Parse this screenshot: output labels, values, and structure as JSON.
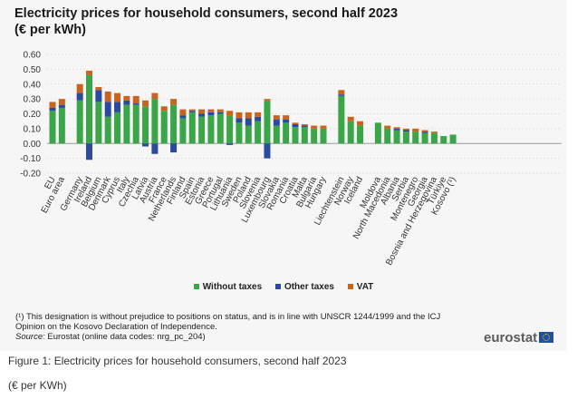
{
  "figure": {
    "title_line1": "Electricity prices for household consumers, second half 2023",
    "title_line2": "(€ per kWh)",
    "caption": "Figure 1: Electricity prices for household consumers, second half 2023",
    "subcaption": "(€ per KWh)",
    "footnote_line1": "(¹) This designation is without prejudice to positions on status, and is in line with UNSCR 1244/1999 and the ICJ",
    "footnote_line2": "Opinion on the Kosovo Declaration of Independence.",
    "source_label": "Source:",
    "source_text": " Eurostat (online data codes: nrg_pc_204)",
    "logo_text": "eurostat"
  },
  "chart_data": {
    "type": "bar",
    "stacked": true,
    "title": "Electricity prices for household consumers, second half 2023",
    "ylabel": "(€ per kWh)",
    "ylim": [
      -0.2,
      0.6
    ],
    "yticks": [
      "0.60",
      "0.50",
      "0.40",
      "0.30",
      "0.20",
      "0.10",
      "0.00",
      "-0.10",
      "-0.20"
    ],
    "grid": true,
    "legend_position": "bottom",
    "colors": {
      "without_taxes": "#3aa648",
      "other_taxes": "#2a4a9f",
      "vat": "#c8641e"
    },
    "categories": [
      "EU",
      "Euro area",
      "Germany",
      "Ireland",
      "Belgium",
      "Denmark",
      "Cyprus",
      "Italy",
      "Czechia",
      "Latvia",
      "Austria",
      "France",
      "Netherlands",
      "Finland",
      "Spain",
      "Estonia",
      "Greece",
      "Portugal",
      "Lithuania",
      "Sweden",
      "Poland",
      "Slovenia",
      "Luxembourg",
      "Slovakia",
      "Romania",
      "Croatia",
      "Malta",
      "Bulgaria",
      "Hungary",
      "Liechtenstein",
      "Norway",
      "Iceland",
      "Moldova",
      "North Macedonia",
      "Albania",
      "Serbia",
      "Montenegro",
      "Georgia",
      "Bosnia and Herzegovina",
      "Türkiye",
      "Kosovo (¹)"
    ],
    "groups": [
      [
        0,
        1
      ],
      [
        2,
        28
      ],
      [
        29,
        31
      ],
      [
        32,
        40
      ]
    ],
    "series": [
      {
        "name": "Without taxes",
        "values": [
          0.22,
          0.24,
          0.29,
          0.46,
          0.28,
          0.18,
          0.21,
          0.26,
          0.26,
          0.25,
          0.3,
          0.22,
          0.26,
          0.17,
          0.21,
          0.18,
          0.19,
          0.2,
          0.19,
          0.14,
          0.12,
          0.15,
          0.29,
          0.12,
          0.14,
          0.11,
          0.11,
          0.1,
          0.1,
          0.32,
          0.15,
          0.12,
          0.14,
          0.1,
          0.09,
          0.08,
          0.08,
          0.07,
          0.07,
          0.05,
          0.06
        ]
      },
      {
        "name": "Other taxes",
        "values": [
          0.02,
          0.02,
          0.05,
          -0.11,
          0.08,
          0.1,
          0.07,
          0.03,
          0.01,
          -0.02,
          -0.07,
          0.0,
          -0.06,
          0.02,
          0.01,
          0.02,
          0.02,
          0.01,
          -0.01,
          0.03,
          0.05,
          0.03,
          -0.1,
          0.04,
          0.02,
          0.02,
          0.01,
          0.0,
          0.0,
          0.01,
          0.0,
          0.0,
          0.0,
          0.0,
          0.01,
          0.01,
          0.0,
          0.01,
          0.0,
          0.0,
          0.0
        ]
      },
      {
        "name": "VAT",
        "values": [
          0.04,
          0.04,
          0.06,
          0.03,
          0.02,
          0.07,
          0.06,
          0.03,
          0.05,
          0.04,
          0.04,
          0.03,
          0.04,
          0.04,
          0.01,
          0.03,
          0.02,
          0.02,
          0.03,
          0.04,
          0.04,
          0.03,
          0.01,
          0.03,
          0.03,
          0.01,
          0.01,
          0.02,
          0.02,
          0.03,
          0.03,
          0.03,
          0.0,
          0.02,
          0.01,
          0.01,
          0.02,
          0.01,
          0.01,
          0.0,
          0.0
        ]
      }
    ]
  }
}
